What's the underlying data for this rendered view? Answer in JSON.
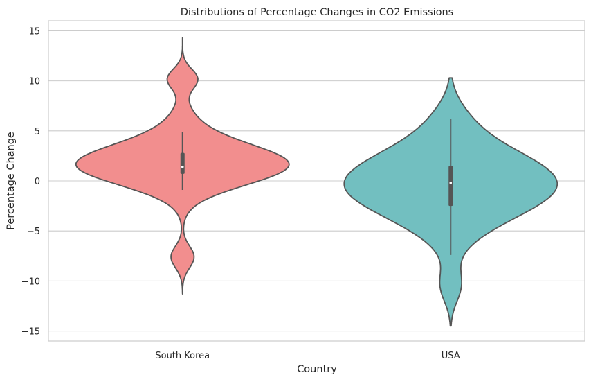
{
  "chart_data": {
    "type": "violin",
    "title": "Distributions of Percentage Changes in CO2 Emissions",
    "xlabel": "Country",
    "ylabel": "Percentage Change",
    "ylim": [
      -16,
      16
    ],
    "yticks": [
      -15,
      -10,
      -5,
      0,
      5,
      10,
      15
    ],
    "grid": true,
    "categories": [
      "South Korea",
      "USA"
    ],
    "colors": [
      "#f28e8e",
      "#72bfc0"
    ],
    "violins": [
      {
        "category": "South Korea",
        "range": [
          -11.3,
          14.3
        ],
        "median": 1.4,
        "q1": 0.7,
        "q3": 2.8,
        "whisker_low": -0.9,
        "whisker_high": 4.9
      },
      {
        "category": "USA",
        "range": [
          -14.5,
          10.3
        ],
        "median": -0.2,
        "q1": -2.5,
        "q3": 1.5,
        "whisker_low": -7.4,
        "whisker_high": 6.2
      }
    ]
  }
}
